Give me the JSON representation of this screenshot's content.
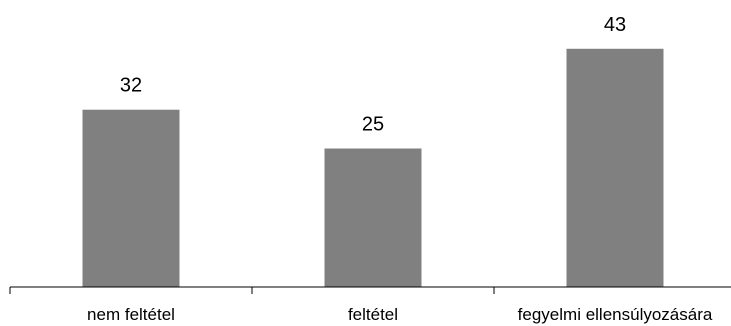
{
  "chart_data": {
    "type": "bar",
    "categories": [
      "nem feltétel",
      "feltétel",
      "fegyelmi ellensúlyozására"
    ],
    "values": [
      32,
      25,
      43
    ],
    "data_labels": [
      "32",
      "25",
      "43"
    ],
    "ylim": [
      0,
      50
    ],
    "grid": false,
    "legend": "none",
    "bar_color": "#808080",
    "axis_color": "#000000"
  }
}
